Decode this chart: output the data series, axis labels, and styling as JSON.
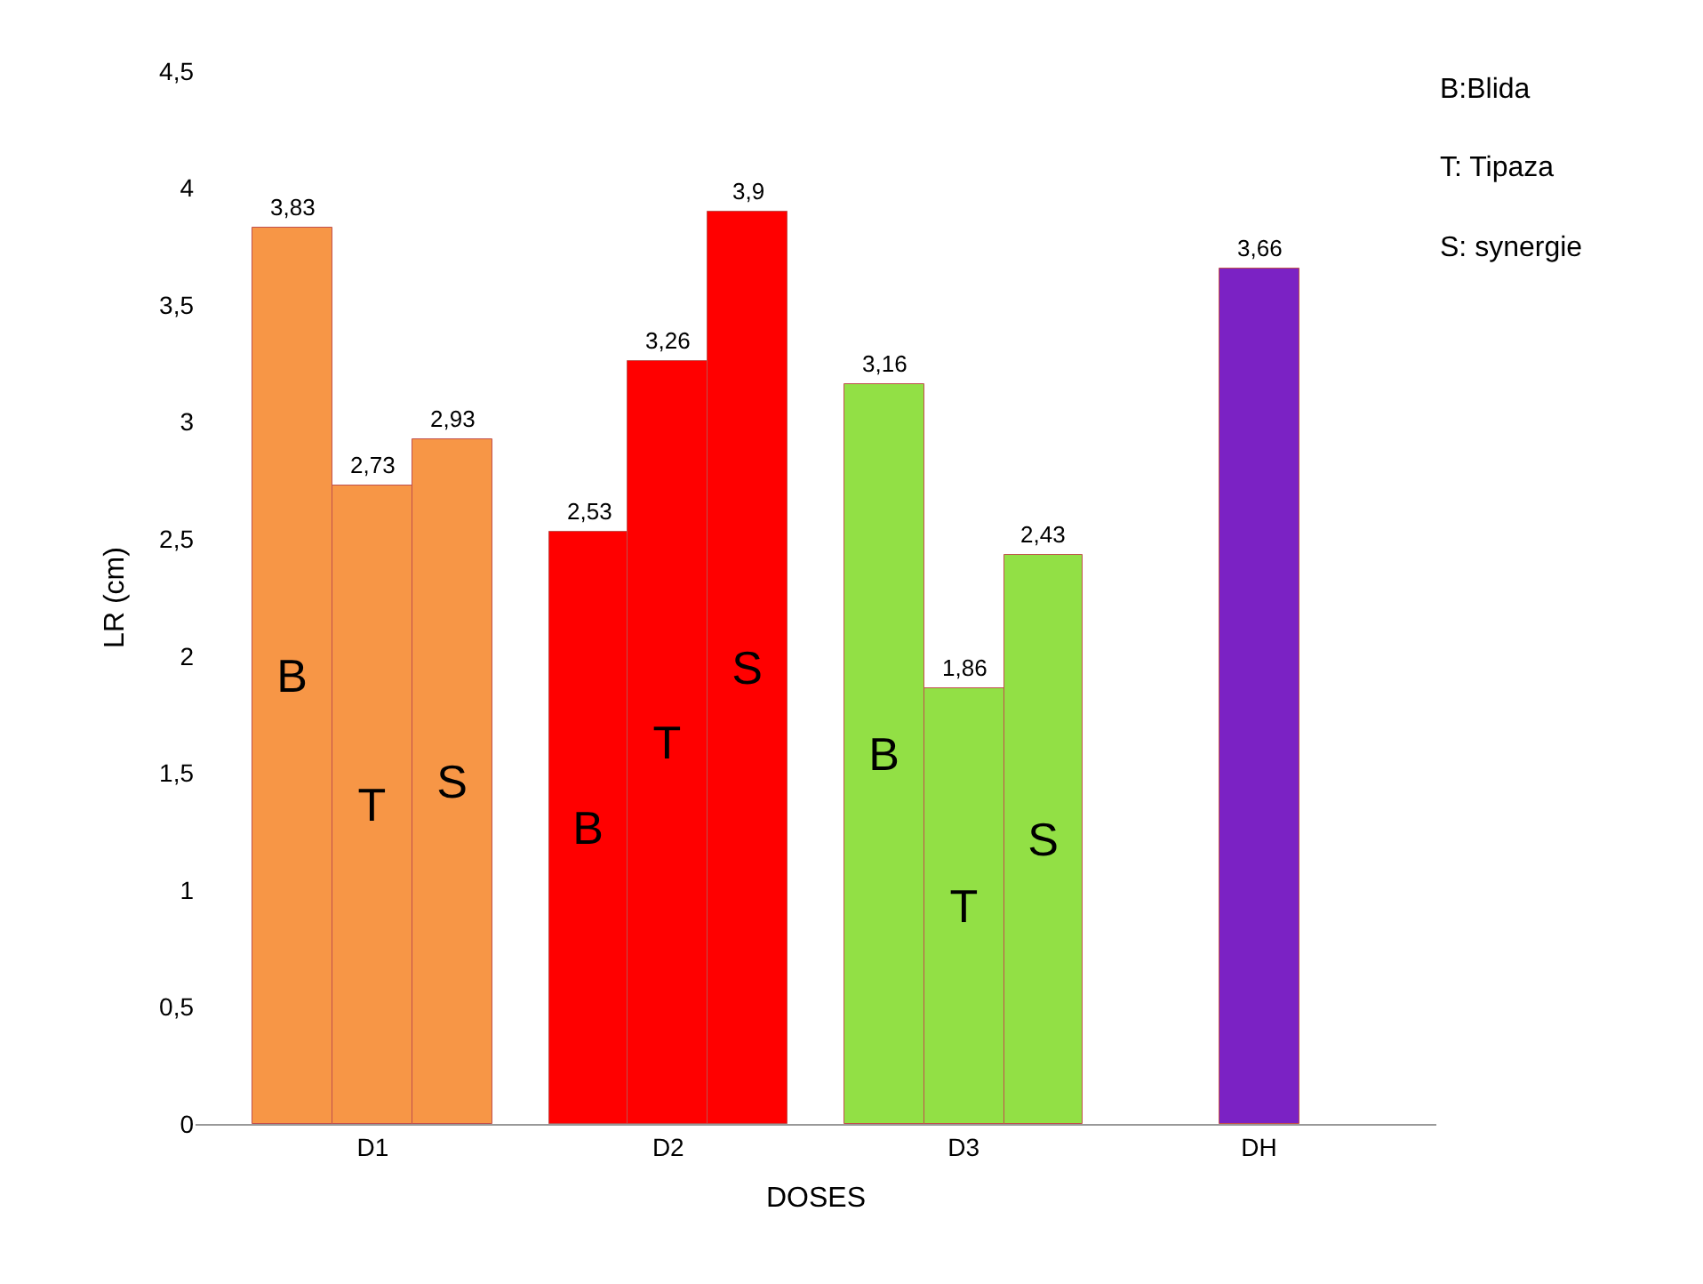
{
  "chart_data": {
    "type": "bar",
    "xlabel": "DOSES",
    "ylabel": "LR (cm)",
    "categories": [
      "D1",
      "D2",
      "D3",
      "DH"
    ],
    "series": [
      {
        "name": "B",
        "colors": [
          "#f79646",
          "#ff0000",
          "#92e045",
          null
        ],
        "values": [
          3.83,
          2.53,
          3.16,
          null
        ],
        "value_labels": [
          "3,83",
          "2,53",
          "3,16",
          null
        ]
      },
      {
        "name": "T",
        "colors": [
          "#f79646",
          "#ff0000",
          "#92e045",
          null
        ],
        "values": [
          2.73,
          3.26,
          1.86,
          null
        ],
        "value_labels": [
          "2,73",
          "3,26",
          "1,86",
          null
        ]
      },
      {
        "name": "S",
        "colors": [
          "#f79646",
          "#ff0000",
          "#92e045",
          null
        ],
        "values": [
          2.93,
          3.9,
          2.43,
          null
        ],
        "value_labels": [
          "2,93",
          "3,9",
          "2,43",
          null
        ]
      },
      {
        "colors": [
          null,
          null,
          null,
          "#7b22c4"
        ],
        "values": [
          null,
          null,
          null,
          3.66
        ],
        "value_labels": [
          null,
          null,
          null,
          "3,66"
        ]
      }
    ],
    "ylim": [
      0,
      4.5
    ],
    "yticks": [
      0,
      {
        "value": 0.5,
        "label": "0,5"
      },
      1,
      {
        "value": 1.5,
        "label": "1,5"
      },
      2,
      {
        "value": 2.5,
        "label": "2,5"
      },
      3,
      {
        "value": 3.5,
        "label": "3,5"
      },
      4,
      {
        "value": 4.5,
        "label": "4,5"
      }
    ],
    "annotations": [
      "B:Blida",
      "T: Tipaza",
      "S: synergie"
    ]
  }
}
